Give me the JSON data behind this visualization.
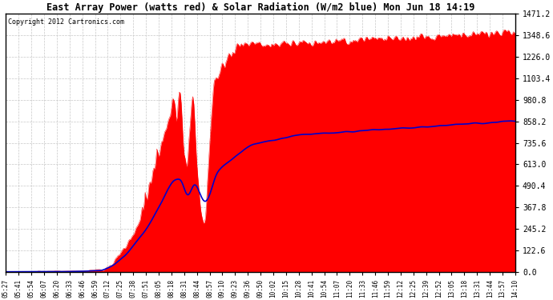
{
  "title": "East Array Power (watts red) & Solar Radiation (W/m2 blue) Mon Jun 18 14:19",
  "copyright": "Copyright 2012 Cartronics.com",
  "ylabel_right_ticks": [
    0.0,
    122.6,
    245.2,
    367.8,
    490.4,
    613.0,
    735.6,
    858.2,
    980.8,
    1103.4,
    1226.0,
    1348.6,
    1471.2
  ],
  "ymax": 1471.2,
  "ymin": 0.0,
  "bg_color": "#ffffff",
  "plot_bg_color": "#ffffff",
  "grid_color": "#c8c8c8",
  "red_color": "#ff0000",
  "blue_color": "#0000cc",
  "time_labels": [
    "05:27",
    "05:41",
    "05:54",
    "06:07",
    "06:20",
    "06:33",
    "06:46",
    "06:59",
    "07:12",
    "07:25",
    "07:38",
    "07:51",
    "08:05",
    "08:18",
    "08:31",
    "08:44",
    "08:57",
    "09:10",
    "09:23",
    "09:36",
    "09:50",
    "10:02",
    "10:15",
    "10:28",
    "10:41",
    "10:54",
    "11:07",
    "11:20",
    "11:33",
    "11:46",
    "11:59",
    "12:12",
    "12:25",
    "12:39",
    "12:52",
    "13:05",
    "13:18",
    "13:31",
    "13:44",
    "13:57",
    "14:10"
  ]
}
